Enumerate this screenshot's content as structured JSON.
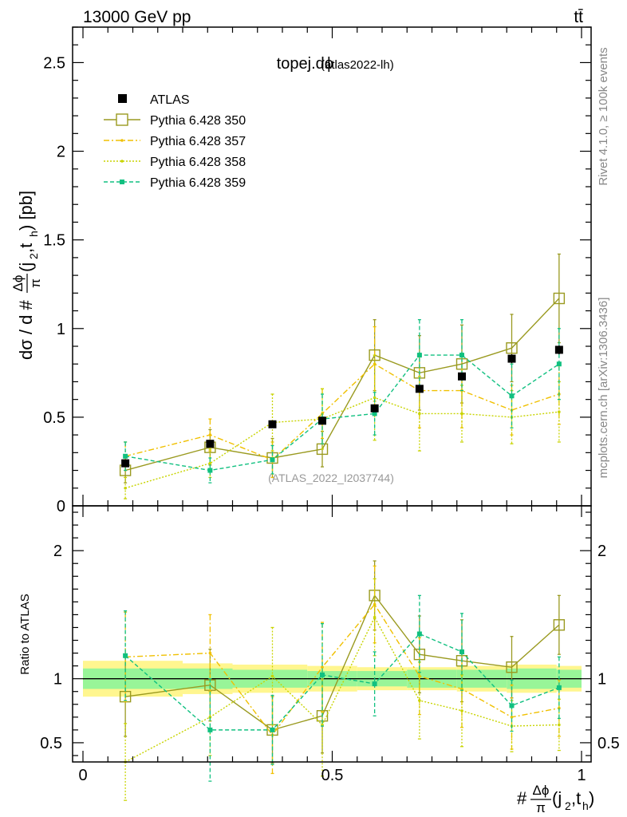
{
  "header": {
    "energy_label": "13000 GeV pp",
    "process_label": "tt̄"
  },
  "side_labels": {
    "rivet": "Rivet 4.1.0, ≥ 100k events",
    "mcplots": "mcplots.cern.ch [arXiv:1306.3436]"
  },
  "chart_data": {
    "type": "scatter",
    "title": "topej.dϕ",
    "title_sub": "(atlas2022-lh)",
    "watermark": "(ATLAS_2022_I2037744)",
    "xlabel_parts": [
      "#",
      "Δϕ",
      "π",
      "(j",
      "2",
      ",t",
      "h",
      ")"
    ],
    "ylabel": "dσ / d #Δϕ/π(j2,th) [pb]",
    "ylabel_parts": [
      "dσ / d #",
      "Δϕ",
      "π",
      "(j",
      "2",
      ",t",
      "h",
      ") [pb]"
    ],
    "ratio_ylabel": "Ratio to ATLAS",
    "xlim": [
      0,
      1
    ],
    "ylim": [
      0,
      2.7
    ],
    "ratio_ylim": [
      0.35,
      2.35
    ],
    "x_ticks": [
      {
        "value": 0,
        "label": "0"
      },
      {
        "value": 0.5,
        "label": "0.5"
      },
      {
        "value": 1,
        "label": "1"
      }
    ],
    "y_ticks": [
      {
        "value": 0,
        "label": "0"
      },
      {
        "value": 0.5,
        "label": "0.5"
      },
      {
        "value": 1,
        "label": "1"
      },
      {
        "value": 1.5,
        "label": "1.5"
      },
      {
        "value": 2,
        "label": "2"
      },
      {
        "value": 2.5,
        "label": "2.5"
      }
    ],
    "ratio_ticks": [
      {
        "value": 0.5,
        "label": "0.5"
      },
      {
        "value": 1,
        "label": "1"
      },
      {
        "value": 2,
        "label": "2"
      }
    ],
    "bin_edges": [
      0,
      0.2,
      0.3,
      0.45,
      0.55,
      0.65,
      0.75,
      0.85,
      0.95,
      1.0
    ],
    "x": [
      0.085,
      0.255,
      0.38,
      0.48,
      0.585,
      0.675,
      0.76,
      0.86,
      0.955
    ],
    "data": {
      "name": "ATLAS",
      "values": [
        0.24,
        0.35,
        0.46,
        0.48,
        0.55,
        0.66,
        0.73,
        0.83,
        0.88
      ],
      "errors": [
        0.015,
        0.015,
        0.015,
        0.015,
        0.015,
        0.02,
        0.02,
        0.025,
        0.025
      ]
    },
    "ratio_band": {
      "inner": [
        0.08,
        0.08,
        0.07,
        0.06,
        0.06,
        0.07,
        0.07,
        0.08,
        0.07
      ],
      "outer": [
        0.14,
        0.12,
        0.11,
        0.1,
        0.09,
        0.09,
        0.1,
        0.11,
        0.1
      ]
    },
    "series": [
      {
        "name": "Pythia 6.428 350",
        "color": "#9a9a20",
        "dash": "",
        "marker": "open-square",
        "values": [
          0.2,
          0.33,
          0.27,
          0.32,
          0.85,
          0.75,
          0.8,
          0.89,
          1.17
        ],
        "errors": [
          0.07,
          0.1,
          0.11,
          0.1,
          0.2,
          0.21,
          0.22,
          0.19,
          0.25
        ],
        "ratio": [
          0.86,
          0.95,
          0.6,
          0.71,
          1.65,
          1.19,
          1.14,
          1.09,
          1.42
        ],
        "ratio_errors": [
          0.31,
          0.28,
          0.26,
          0.29,
          0.27,
          0.3,
          0.32,
          0.24,
          0.23
        ]
      },
      {
        "name": "Pythia 6.428 357",
        "color": "#f0c000",
        "dash": "7,3,2,3",
        "marker": "dot",
        "values": [
          0.28,
          0.4,
          0.26,
          0.52,
          0.8,
          0.65,
          0.65,
          0.54,
          0.63
        ],
        "errors": [
          0.08,
          0.09,
          0.1,
          0.14,
          0.21,
          0.21,
          0.21,
          0.14,
          0.17
        ],
        "ratio": [
          1.17,
          1.2,
          0.56,
          1.09,
          1.58,
          1.02,
          0.92,
          0.7,
          0.77
        ],
        "ratio_errors": [
          0.35,
          0.3,
          0.3,
          0.35,
          0.3,
          0.3,
          0.3,
          0.25,
          0.22
        ]
      },
      {
        "name": "Pythia 6.428 358",
        "color": "#c8d400",
        "dash": "2,2",
        "marker": "dot",
        "values": [
          0.1,
          0.24,
          0.47,
          0.49,
          0.61,
          0.52,
          0.52,
          0.5,
          0.53
        ],
        "errors": [
          0.06,
          0.08,
          0.16,
          0.17,
          0.24,
          0.21,
          0.16,
          0.15,
          0.17
        ],
        "ratio": [
          0.35,
          0.7,
          1.02,
          0.64,
          1.48,
          0.83,
          0.75,
          0.63,
          0.64
        ],
        "ratio_errors": [
          0.3,
          0.3,
          0.38,
          0.4,
          0.3,
          0.3,
          0.28,
          0.2,
          0.2
        ]
      },
      {
        "name": "Pythia 6.428 359",
        "color": "#10c080",
        "dash": "5,3",
        "marker": "filled-square",
        "values": [
          0.28,
          0.2,
          0.26,
          0.49,
          0.52,
          0.85,
          0.85,
          0.62,
          0.8
        ],
        "errors": [
          0.08,
          0.07,
          0.08,
          0.14,
          0.12,
          0.2,
          0.2,
          0.18,
          0.2
        ],
        "ratio": [
          1.18,
          0.6,
          0.6,
          1.03,
          0.96,
          1.35,
          1.21,
          0.79,
          0.93
        ],
        "ratio_errors": [
          0.35,
          0.4,
          0.27,
          0.4,
          0.25,
          0.3,
          0.3,
          0.2,
          0.24
        ]
      }
    ]
  }
}
